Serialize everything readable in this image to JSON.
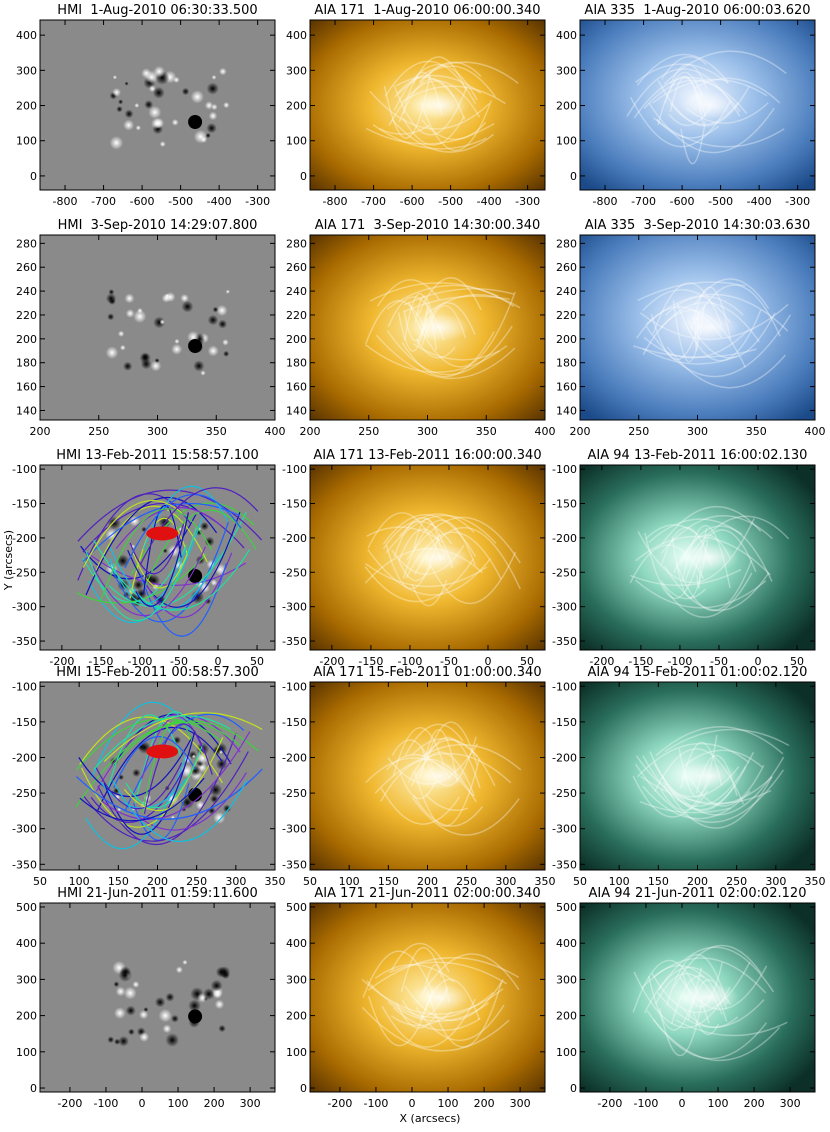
{
  "figure": {
    "y_label": "Y (arcsecs)",
    "x_label": "X (arcsecs)",
    "rows": [
      {
        "xlim": [
          -865,
          -255
        ],
        "ylim": [
          -40,
          443
        ],
        "xticks": [
          -800,
          -700,
          -600,
          -500,
          -400,
          -300
        ],
        "yticks": [
          0,
          100,
          200,
          300,
          400
        ],
        "panels": [
          {
            "title": "HMI  1-Aug-2010 06:30:33.500"
          },
          {
            "title": "AIA 171  1-Aug-2010 06:00:00.340"
          },
          {
            "title": "AIA 335  1-Aug-2010 06:00:03.620"
          }
        ]
      },
      {
        "xlim": [
          200,
          400
        ],
        "ylim": [
          132,
          287
        ],
        "xticks": [
          200,
          250,
          300,
          350,
          400
        ],
        "yticks": [
          140,
          160,
          180,
          200,
          220,
          240,
          260,
          280
        ],
        "panels": [
          {
            "title": "HMI  3-Sep-2010 14:29:07.800"
          },
          {
            "title": "AIA 171  3-Sep-2010 14:30:00.340"
          },
          {
            "title": "AIA 335  3-Sep-2010 14:30:03.630"
          }
        ]
      },
      {
        "xlim": [
          -228,
          73
        ],
        "ylim": [
          -363,
          -94
        ],
        "xticks": [
          -200,
          -150,
          -100,
          -50,
          0,
          50
        ],
        "yticks": [
          -350,
          -300,
          -250,
          -200,
          -150,
          -100
        ],
        "panels": [
          {
            "title": "HMI 13-Feb-2011 15:58:57.100"
          },
          {
            "title": "AIA 171 13-Feb-2011 16:00:00.340"
          },
          {
            "title": "AIA 94 13-Feb-2011 16:00:02.130"
          }
        ]
      },
      {
        "xlim": [
          50,
          350
        ],
        "ylim": [
          -358,
          -94
        ],
        "xticks": [
          50,
          100,
          150,
          200,
          250,
          300,
          350
        ],
        "yticks": [
          -350,
          -300,
          -250,
          -200,
          -150,
          -100
        ],
        "panels": [
          {
            "title": "HMI 15-Feb-2011 00:58:57.300"
          },
          {
            "title": "AIA 171 15-Feb-2011 01:00:00.340"
          },
          {
            "title": "AIA 94 15-Feb-2011 01:00:02.120"
          }
        ]
      },
      {
        "xlim": [
          -283,
          369
        ],
        "ylim": [
          -11,
          511
        ],
        "xticks": [
          -200,
          -100,
          0,
          100,
          200,
          300
        ],
        "yticks": [
          0,
          100,
          200,
          300,
          400,
          500
        ],
        "panels": [
          {
            "title": "HMI 21-Jun-2011 01:59:11.600"
          },
          {
            "title": "AIA 171 21-Jun-2011 02:00:00.340"
          },
          {
            "title": "AIA 94 21-Jun-2011 02:00:02.120"
          }
        ]
      }
    ]
  }
}
